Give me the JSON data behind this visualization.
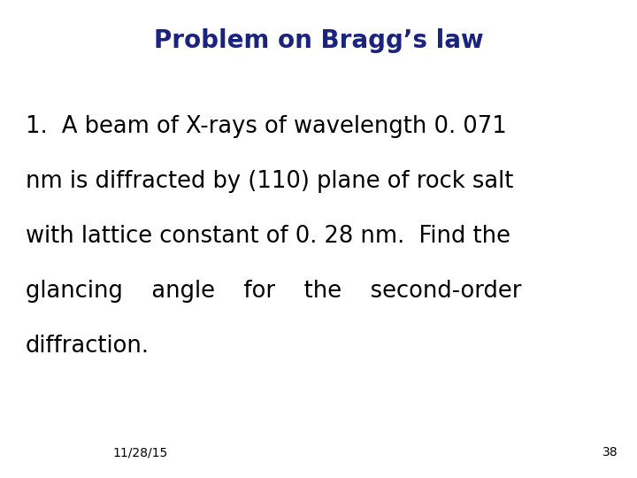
{
  "title": "Problem on Bragg’s law",
  "title_color": "#1a237e",
  "title_fontsize": 20,
  "body_lines": [
    "1.  A beam of X-rays of wavelength 0. 071",
    "nm is diffracted by (110) plane of rock salt",
    "with lattice constant of 0. 28 nm.  Find the",
    "glancing    angle    for    the    second-order",
    "diffraction."
  ],
  "body_fontsize": 18.5,
  "body_color": "#000000",
  "footer_date": "11/28/15",
  "footer_page": "38",
  "footer_fontsize": 10,
  "bg_color": "#ffffff",
  "fig_width": 7.2,
  "fig_height": 5.4,
  "dpi": 100
}
